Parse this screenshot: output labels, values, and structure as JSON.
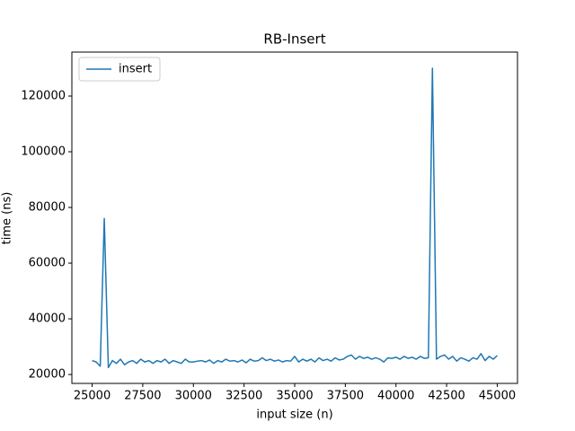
{
  "chart_data": {
    "type": "line",
    "title": "RB-Insert",
    "x_label": "input size (n)",
    "y_label": "time (ns)",
    "x": [
      25000,
      25200,
      25400,
      25600,
      25800,
      26000,
      26200,
      26400,
      26600,
      26800,
      27000,
      27200,
      27400,
      27600,
      27800,
      28000,
      28200,
      28400,
      28600,
      28800,
      29000,
      29200,
      29400,
      29600,
      29800,
      30000,
      30200,
      30400,
      30600,
      30800,
      31000,
      31200,
      31400,
      31600,
      31800,
      32000,
      32200,
      32400,
      32600,
      32800,
      33000,
      33200,
      33400,
      33600,
      33800,
      34000,
      34200,
      34400,
      34600,
      34800,
      35000,
      35200,
      35400,
      35600,
      35800,
      36000,
      36200,
      36400,
      36600,
      36800,
      37000,
      37200,
      37400,
      37600,
      37800,
      38000,
      38200,
      38400,
      38600,
      38800,
      39000,
      39200,
      39400,
      39600,
      39800,
      40000,
      40200,
      40400,
      40600,
      40800,
      41000,
      41200,
      41400,
      41600,
      41800,
      42000,
      42200,
      42400,
      42600,
      42800,
      43000,
      43200,
      43400,
      43600,
      43800,
      44000,
      44200,
      44400,
      44600,
      44800,
      45000
    ],
    "series": [
      {
        "name": "insert",
        "color": "#1f77b4",
        "values": [
          25000,
          24500,
          23000,
          76000,
          22500,
          25000,
          24000,
          25500,
          23500,
          24500,
          25000,
          24000,
          25500,
          24500,
          25000,
          24000,
          25000,
          24500,
          25500,
          24000,
          25000,
          24500,
          24000,
          25500,
          24500,
          24500,
          24800,
          25000,
          24500,
          25200,
          24000,
          25000,
          24500,
          25500,
          24800,
          25000,
          24500,
          25200,
          24200,
          25500,
          24800,
          25000,
          26000,
          25000,
          25500,
          24800,
          25200,
          24500,
          25000,
          24800,
          26500,
          24500,
          25500,
          24800,
          25500,
          24500,
          26000,
          25000,
          25500,
          24800,
          26000,
          25200,
          25500,
          26500,
          27000,
          25500,
          26500,
          25800,
          26200,
          25500,
          26000,
          25500,
          24500,
          26000,
          25800,
          26200,
          25500,
          26500,
          25800,
          26200,
          25500,
          26500,
          25800,
          26000,
          130000,
          25500,
          26500,
          27000,
          25500,
          26500,
          24800,
          26000,
          25500,
          24800,
          26000,
          25500,
          27500,
          25000,
          26500,
          25500,
          26800
        ]
      }
    ],
    "xlim": [
      24000,
      46000
    ],
    "ylim": [
      16800,
      135800
    ],
    "xticks": [
      25000,
      27500,
      30000,
      32500,
      35000,
      37500,
      40000,
      42500,
      45000
    ],
    "yticks": [
      20000,
      40000,
      60000,
      80000,
      100000,
      120000
    ],
    "legend": "upper left",
    "grid": false
  }
}
